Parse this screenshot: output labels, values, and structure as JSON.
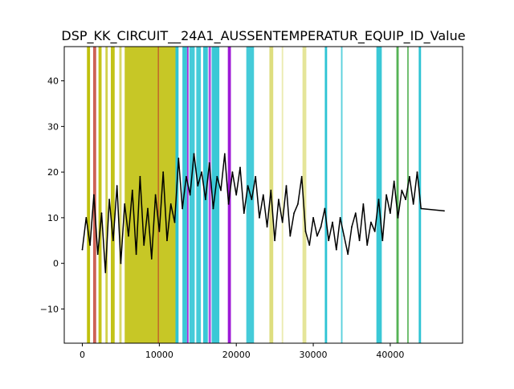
{
  "chart_data": {
    "type": "line",
    "title": "DSP_KK_CIRCUIT__24A1_AUSSENTEMPERATUR_EQUIP_ID_Value",
    "xlabel": "",
    "ylabel": "",
    "xlim": [
      -2350,
      49400
    ],
    "ylim": [
      -17.5,
      47.5
    ],
    "xticks": [
      {
        "value": 0,
        "label": "0"
      },
      {
        "value": 10000,
        "label": "10000"
      },
      {
        "value": 20000,
        "label": "20000"
      },
      {
        "value": 30000,
        "label": "30000"
      },
      {
        "value": 40000,
        "label": "40000"
      }
    ],
    "yticks": [
      {
        "value": -10,
        "label": "−10"
      },
      {
        "value": 0,
        "label": "0"
      },
      {
        "value": 10,
        "label": "10"
      },
      {
        "value": 20,
        "label": "20"
      },
      {
        "value": 30,
        "label": "30"
      },
      {
        "value": 40,
        "label": "40"
      }
    ],
    "grid": false,
    "series": [
      {
        "color": "#000000",
        "x": [
          0,
          500,
          1000,
          1500,
          2000,
          2500,
          3000,
          3500,
          4000,
          4500,
          5000,
          5500,
          6000,
          6500,
          7000,
          7500,
          8000,
          8500,
          9000,
          9500,
          10000,
          10500,
          11000,
          11500,
          12000,
          12500,
          13000,
          13500,
          14000,
          14500,
          15000,
          15500,
          16000,
          16500,
          17000,
          17500,
          18000,
          18500,
          19000,
          19500,
          20000,
          20500,
          21000,
          21500,
          22000,
          22500,
          23000,
          23500,
          24000,
          24500,
          25000,
          25500,
          26000,
          26500,
          27000,
          27500,
          28000,
          28500,
          29000,
          29500,
          30000,
          30500,
          31000,
          31500,
          32000,
          32500,
          33000,
          33500,
          34000,
          34500,
          35000,
          35500,
          36000,
          36500,
          37000,
          37500,
          38000,
          38500,
          39000,
          39500,
          40000,
          40500,
          41000,
          41500,
          42000,
          42500,
          43000,
          43500,
          44000,
          47000
        ],
        "values": [
          3,
          10,
          4,
          15,
          2,
          11,
          -2,
          14,
          5,
          17,
          0,
          13,
          6,
          16,
          2,
          19,
          4,
          12,
          1,
          15,
          7,
          20,
          5,
          13,
          9,
          23,
          12,
          19,
          15,
          24,
          17,
          20,
          14,
          22,
          12,
          19,
          16,
          24,
          13,
          20,
          15,
          21,
          11,
          17,
          14,
          19,
          10,
          15,
          8,
          16,
          5,
          14,
          9,
          17,
          6,
          11,
          13,
          19,
          7,
          4,
          10,
          6,
          8,
          12,
          5,
          9,
          3,
          10,
          6,
          2,
          8,
          11,
          5,
          13,
          4,
          9,
          7,
          14,
          5,
          15,
          11,
          18,
          10,
          16,
          14,
          19,
          13,
          20,
          12,
          11.5
        ]
      }
    ],
    "bands": [
      {
        "x0": 600,
        "x1": 1000,
        "color": "#bdbd00",
        "opacity": 0.95
      },
      {
        "x0": 1400,
        "x1": 1800,
        "color": "#c0392b",
        "opacity": 0.8
      },
      {
        "x0": 2100,
        "x1": 2500,
        "color": "#bdbd00",
        "opacity": 0.9
      },
      {
        "x0": 3000,
        "x1": 3300,
        "color": "#bdbd00",
        "opacity": 0.7
      },
      {
        "x0": 3700,
        "x1": 4200,
        "color": "#bdbd00",
        "opacity": 0.9
      },
      {
        "x0": 4800,
        "x1": 5100,
        "color": "#bdbd00",
        "opacity": 0.6
      },
      {
        "x0": 5500,
        "x1": 12100,
        "color": "#bdbd00",
        "opacity": 0.85
      },
      {
        "x0": 9800,
        "x1": 9950,
        "color": "#c0392b",
        "opacity": 0.7
      },
      {
        "x0": 12100,
        "x1": 12500,
        "color": "#17becf",
        "opacity": 0.9
      },
      {
        "x0": 13000,
        "x1": 13600,
        "color": "#17becf",
        "opacity": 0.85
      },
      {
        "x0": 13600,
        "x1": 13800,
        "color": "#9400d3",
        "opacity": 0.8
      },
      {
        "x0": 13900,
        "x1": 14600,
        "color": "#17becf",
        "opacity": 0.8
      },
      {
        "x0": 14800,
        "x1": 15400,
        "color": "#17becf",
        "opacity": 0.8
      },
      {
        "x0": 15700,
        "x1": 16300,
        "color": "#17becf",
        "opacity": 0.85
      },
      {
        "x0": 16400,
        "x1": 16700,
        "color": "#9400d3",
        "opacity": 0.7
      },
      {
        "x0": 16800,
        "x1": 17800,
        "color": "#17becf",
        "opacity": 0.85
      },
      {
        "x0": 18900,
        "x1": 19300,
        "color": "#9400d3",
        "opacity": 0.9
      },
      {
        "x0": 21300,
        "x1": 22300,
        "color": "#17becf",
        "opacity": 0.8
      },
      {
        "x0": 24300,
        "x1": 24800,
        "color": "#bdbd00",
        "opacity": 0.5
      },
      {
        "x0": 25900,
        "x1": 26100,
        "color": "#bdbd00",
        "opacity": 0.3
      },
      {
        "x0": 28600,
        "x1": 29100,
        "color": "#bdbd00",
        "opacity": 0.4
      },
      {
        "x0": 31500,
        "x1": 31800,
        "color": "#17becf",
        "opacity": 0.9
      },
      {
        "x0": 33600,
        "x1": 33800,
        "color": "#17becf",
        "opacity": 0.7
      },
      {
        "x0": 38200,
        "x1": 38900,
        "color": "#17becf",
        "opacity": 0.85
      },
      {
        "x0": 40800,
        "x1": 41100,
        "color": "#2ca02c",
        "opacity": 0.8
      },
      {
        "x0": 42200,
        "x1": 42400,
        "color": "#2ca02c",
        "opacity": 0.7
      },
      {
        "x0": 43700,
        "x1": 44000,
        "color": "#17becf",
        "opacity": 0.9
      }
    ]
  }
}
